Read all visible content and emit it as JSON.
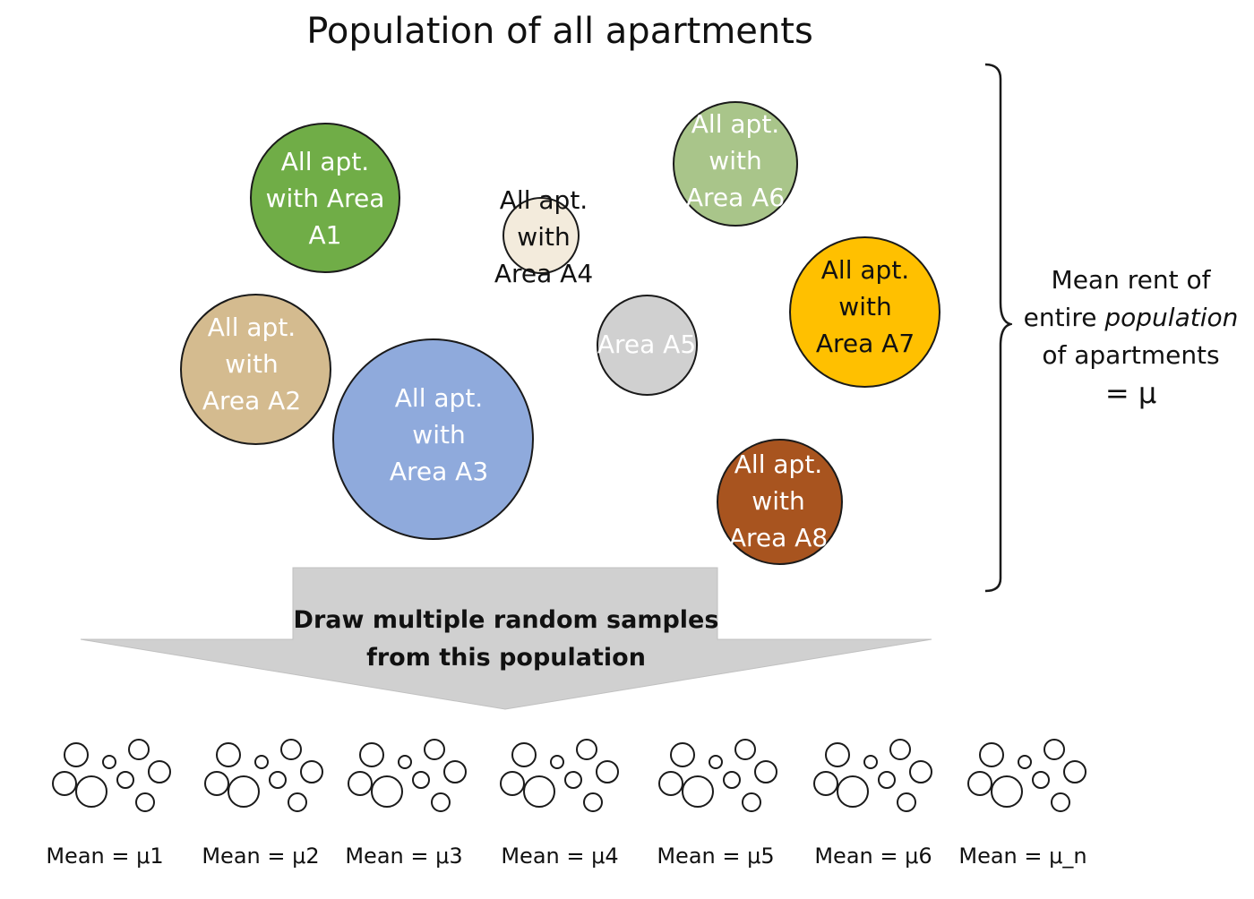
{
  "title": "Population of all apartments",
  "population_label": {
    "line1": "Mean rent of",
    "line2_prefix": "entire ",
    "line2_emphasis": "population",
    "line3": "of apartments",
    "line4": "= μ"
  },
  "arrow_label": {
    "line1": "Draw multiple random samples",
    "line2": "from this population"
  },
  "areas": [
    {
      "lines": [
        "All apt.",
        "with Area",
        "A1"
      ],
      "fill": "#70ad47",
      "text_color": "#ffffff"
    },
    {
      "lines": [
        "All apt.",
        "with",
        "Area A2"
      ],
      "fill": "#d4bb8f",
      "text_color": "#ffffff"
    },
    {
      "lines": [
        "All apt.",
        "with",
        "Area A3"
      ],
      "fill": "#8faadc",
      "text_color": "#ffffff"
    },
    {
      "lines": [
        "All apt.",
        "with",
        "Area A4"
      ],
      "fill": "#f3ebdc",
      "text_color": "#111111"
    },
    {
      "lines": [
        "Area A5"
      ],
      "fill": "#d0d0d0",
      "text_color": "#ffffff"
    },
    {
      "lines": [
        "All apt.",
        "with",
        "Area A6"
      ],
      "fill": "#a9c58a",
      "text_color": "#ffffff"
    },
    {
      "lines": [
        "All apt.",
        "with",
        "Area A7"
      ],
      "fill": "#ffc000",
      "text_color": "#111111"
    },
    {
      "lines": [
        "All apt.",
        "with",
        "Area A8"
      ],
      "fill": "#a8541f",
      "text_color": "#ffffff"
    }
  ],
  "samples": [
    {
      "label": "Mean = μ1"
    },
    {
      "label": "Mean = μ2"
    },
    {
      "label": "Mean = μ3"
    },
    {
      "label": "Mean = μ4"
    },
    {
      "label": "Mean = μ5"
    },
    {
      "label": "Mean = μ6"
    },
    {
      "label": "Mean = μ_n"
    }
  ],
  "colors": {
    "arrow_fill": "#d0d0d0",
    "outline": "#1a1a1a"
  }
}
